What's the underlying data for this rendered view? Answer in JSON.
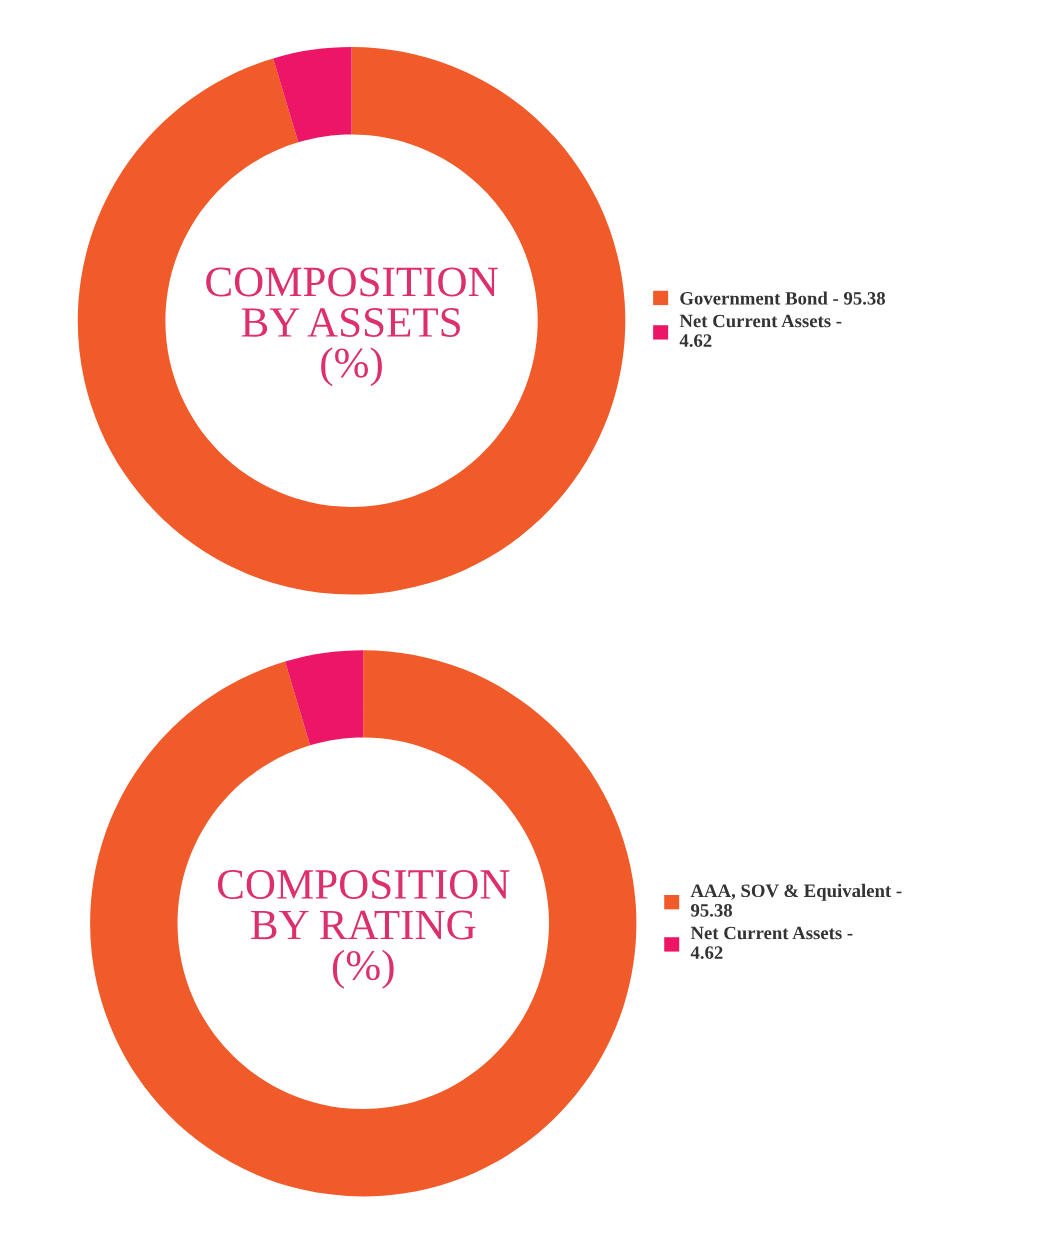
{
  "chart_data": [
    {
      "type": "donut",
      "title": "COMPOSITION\nBY ASSETS\n(%)",
      "categories": [
        "Government Bond - 95.38",
        "Net Current Assets - 4.62"
      ],
      "values": [
        95.38,
        4.62
      ],
      "colors": [
        "#f15a29",
        "#ed1566"
      ],
      "legend": "right"
    },
    {
      "type": "donut",
      "title": "COMPOSITION\nBY RATING\n(%)",
      "categories": [
        "AAA, SOV & Equivalent - 95.38",
        "Net Current Assets - 4.62"
      ],
      "values": [
        95.38,
        4.62
      ],
      "colors": [
        "#f15a29",
        "#ed1566"
      ],
      "legend": "right"
    }
  ]
}
